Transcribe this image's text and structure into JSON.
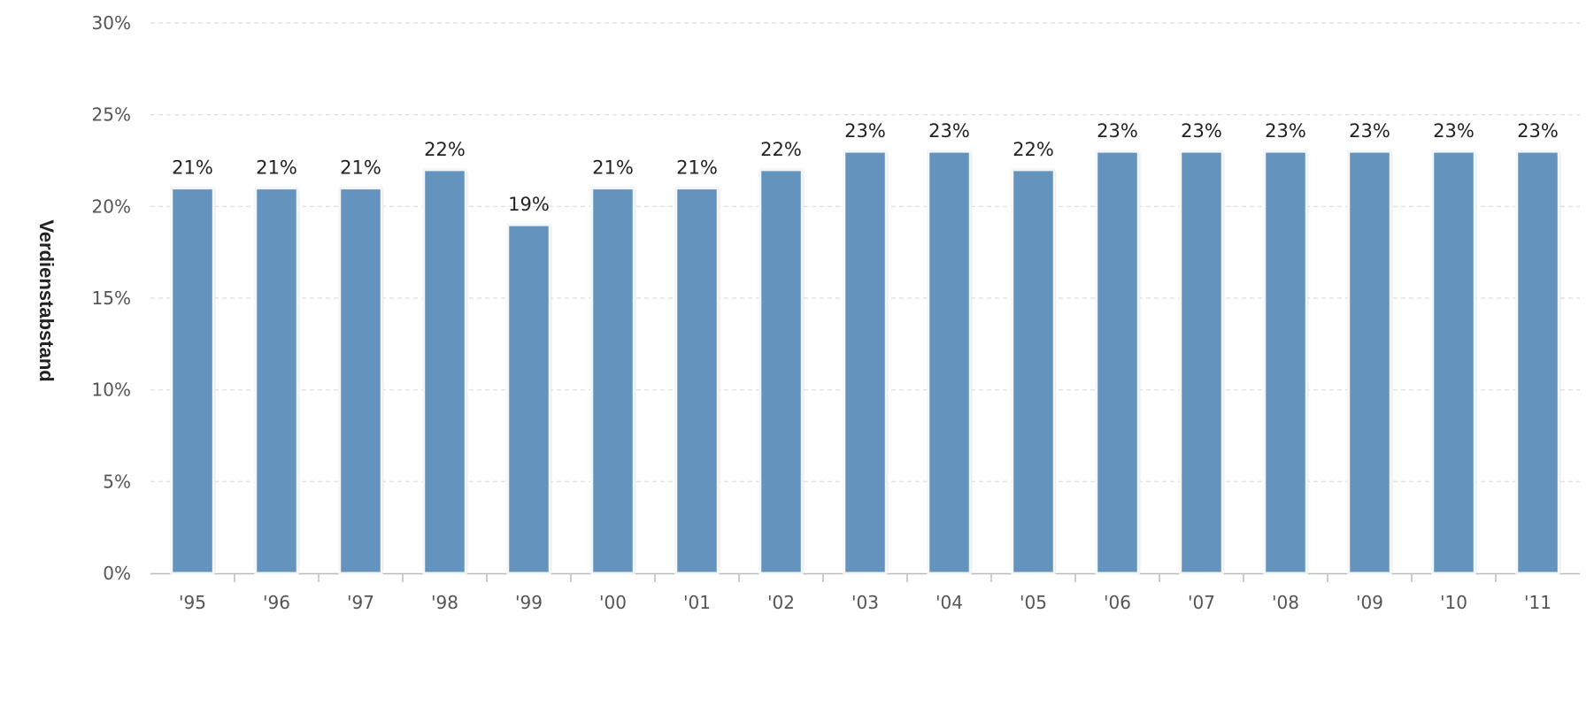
{
  "chart_data": {
    "type": "bar",
    "title": "",
    "xlabel": "",
    "ylabel": "Verdienstabstand",
    "categories": [
      "'95",
      "'96",
      "'97",
      "'98",
      "'99",
      "'00",
      "'01",
      "'02",
      "'03",
      "'04",
      "'05",
      "'06",
      "'07",
      "'08",
      "'09",
      "'10",
      "'11"
    ],
    "values": [
      21,
      21,
      21,
      22,
      19,
      21,
      21,
      22,
      23,
      23,
      22,
      23,
      23,
      23,
      23,
      23,
      23
    ],
    "data_labels": [
      "21%",
      "21%",
      "21%",
      "22%",
      "19%",
      "21%",
      "21%",
      "22%",
      "23%",
      "23%",
      "22%",
      "23%",
      "23%",
      "23%",
      "23%",
      "23%",
      "23%"
    ],
    "ylim": [
      0,
      30
    ],
    "y_ticks": [
      0,
      5,
      10,
      15,
      20,
      25,
      30
    ],
    "y_tick_labels": [
      "0%",
      "5%",
      "10%",
      "15%",
      "20%",
      "25%",
      "30%"
    ],
    "grid": true,
    "legend": "none",
    "colors": {
      "bar": "#6494be",
      "bar_border": "#f4f6f8",
      "grid": "#e3e3e3",
      "axis": "#bbbbbb"
    }
  }
}
